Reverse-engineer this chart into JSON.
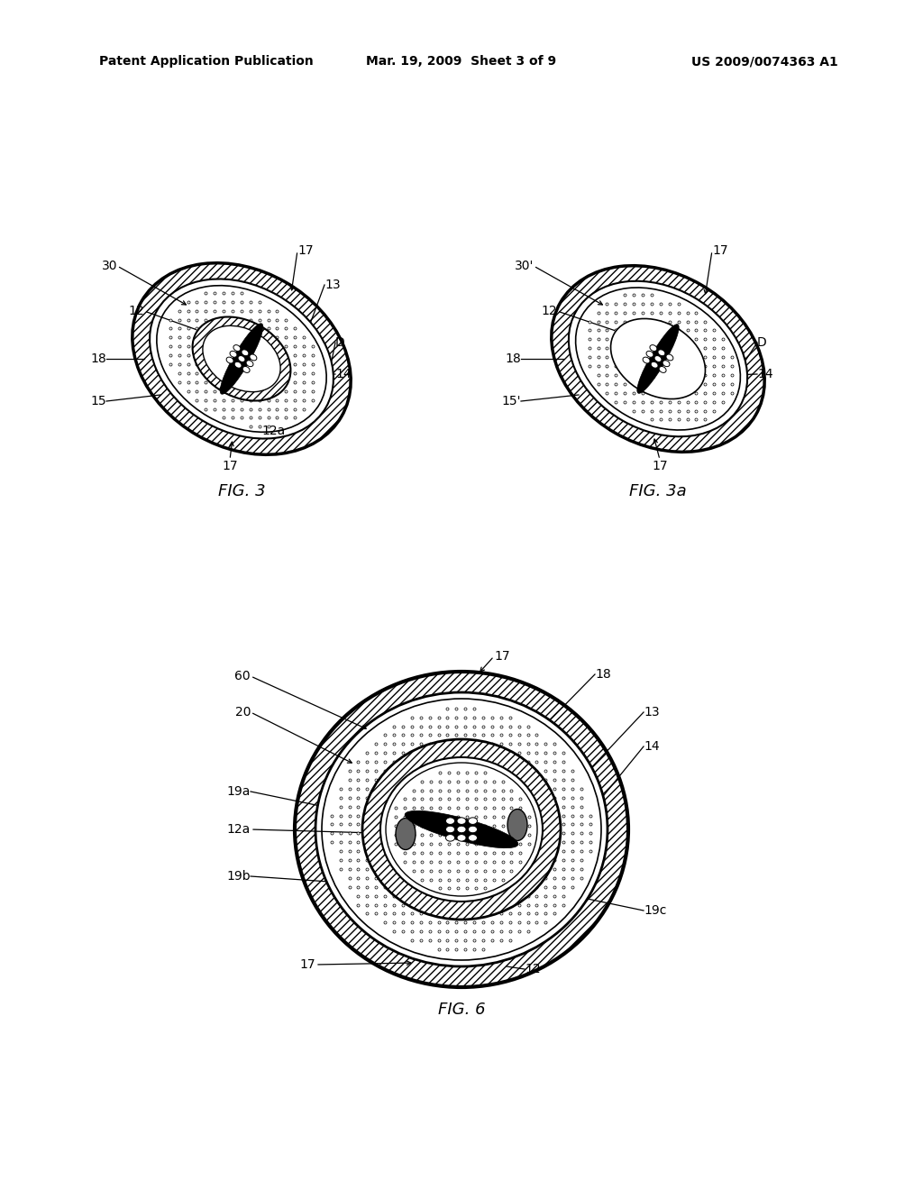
{
  "background_color": "#ffffff",
  "header_left": "Patent Application Publication",
  "header_center": "Mar. 19, 2009  Sheet 3 of 9",
  "header_right": "US 2009/0074363 A1",
  "fig3_label": "FIG. 3",
  "fig3a_label": "FIG. 3a",
  "fig6_label": "FIG. 6"
}
